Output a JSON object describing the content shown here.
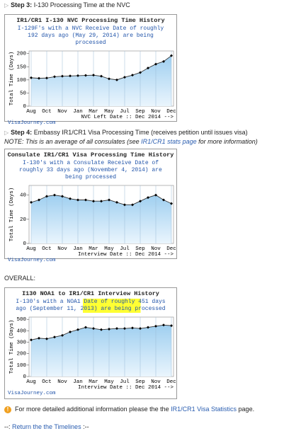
{
  "step3": {
    "label": "Step 3:",
    "text": "I-130 Processing Time at the NVC"
  },
  "step4": {
    "label": "Step 4:",
    "text": "Embassy IR1/CR1 Visa Processing Time (receives petition until issues visa)",
    "note_before": "NOTE: This is an average of all consulates (see",
    "note_link": "IR1/CR1 stats page",
    "note_after": "for more information)"
  },
  "overall": "OVERALL:",
  "info": {
    "before": "For more detailed additional information please the the",
    "link": "IR1/CR1 Visa Statistics",
    "after": "page."
  },
  "return": {
    "before": "--:",
    "link": "Return the the Timelines",
    "after": ":--"
  },
  "chart_data": [
    {
      "type": "line",
      "title": "IR1/CR1 I-130 NVC Processing Time History",
      "subtitle": "I-129F's with a NVC Receive Date of roughly 192 days ago (May 29, 2014) are being processed",
      "ylabel": "Total Time (Days)",
      "xlabel": "NVC Left Date :: Dec 2014 -->",
      "source": "VisaJourney.com",
      "categories": [
        "Aug",
        null,
        "Oct",
        null,
        "Nov",
        null,
        "Jan",
        null,
        "Mar",
        null,
        "May",
        null,
        "Jul",
        null,
        "Sep",
        null,
        "Nov",
        null,
        "Dec"
      ],
      "values": [
        108,
        106,
        107,
        112,
        114,
        115,
        116,
        117,
        118,
        114,
        104,
        100,
        110,
        118,
        128,
        145,
        160,
        170,
        192
      ],
      "color": "#9fcff0",
      "ylim": [
        0,
        210
      ],
      "yticks": [
        0,
        50,
        100,
        150,
        200
      ],
      "grid": true
    },
    {
      "type": "line",
      "title": "Consulate IR1/CR1 Visa Processing Time History",
      "subtitle": "I-130's with a Consulate Receive Date of roughly 33 days ago (November 4, 2014) are being processed",
      "ylabel": "Total Time (Days)",
      "xlabel": "Interview Date :: Dec 2014 -->",
      "source": "VisaJourney.com",
      "categories": [
        "Aug",
        null,
        "Oct",
        null,
        "Nov",
        null,
        "Jan",
        null,
        "Mar",
        null,
        "May",
        null,
        "Jul",
        null,
        "Sep",
        null,
        "Nov",
        null,
        "Dec"
      ],
      "values": [
        34,
        36,
        39,
        40,
        39,
        37,
        36,
        36,
        35,
        35,
        36,
        34,
        32,
        32,
        35,
        38,
        40,
        36,
        33
      ],
      "color": "#9fcff0",
      "ylim": [
        0,
        48
      ],
      "yticks": [
        0,
        20,
        40
      ],
      "grid": true
    },
    {
      "type": "line",
      "title": "I130 NOA1 to IR1/CR1 Interview History",
      "subtitle": "I-130's with a NOA1 Date of roughly 451 days ago (September 11, 2013) are being processed",
      "ylabel": "Total Time (Days)",
      "xlabel": "Interview Date :: Dec 2014 -->",
      "source": "VisaJourney.com",
      "categories": [
        "Aug",
        null,
        "Oct",
        null,
        "Nov",
        null,
        "Jan",
        null,
        "Mar",
        null,
        "May",
        null,
        "Jul",
        null,
        "Sep",
        null,
        "Nov",
        null,
        "Dec"
      ],
      "values": [
        320,
        335,
        330,
        345,
        360,
        390,
        410,
        430,
        420,
        410,
        415,
        420,
        420,
        425,
        420,
        430,
        440,
        450,
        445
      ],
      "color": "#9fcff0",
      "ylim": [
        0,
        520
      ],
      "yticks": [
        0,
        100,
        200,
        300,
        400,
        500
      ],
      "grid": true
    }
  ]
}
